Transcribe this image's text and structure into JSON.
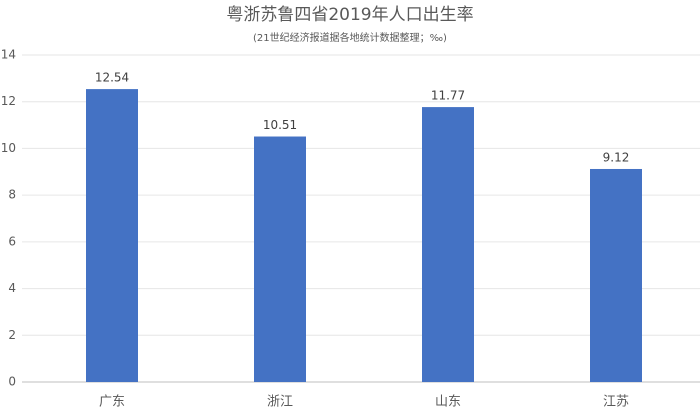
{
  "chart_data": {
    "type": "bar",
    "title": "粤浙苏鲁四省2019年人口出生率",
    "subtitle": "(21世纪经济报道据各地统计数据整理；‰)",
    "categories": [
      "广东",
      "浙江",
      "山东",
      "江苏"
    ],
    "values": [
      12.54,
      10.51,
      11.77,
      9.12
    ],
    "color": "#4472c4",
    "ylim": [
      0,
      14
    ],
    "yticks": [
      0,
      2,
      4,
      6,
      8,
      10,
      12,
      14
    ],
    "grid": true
  }
}
